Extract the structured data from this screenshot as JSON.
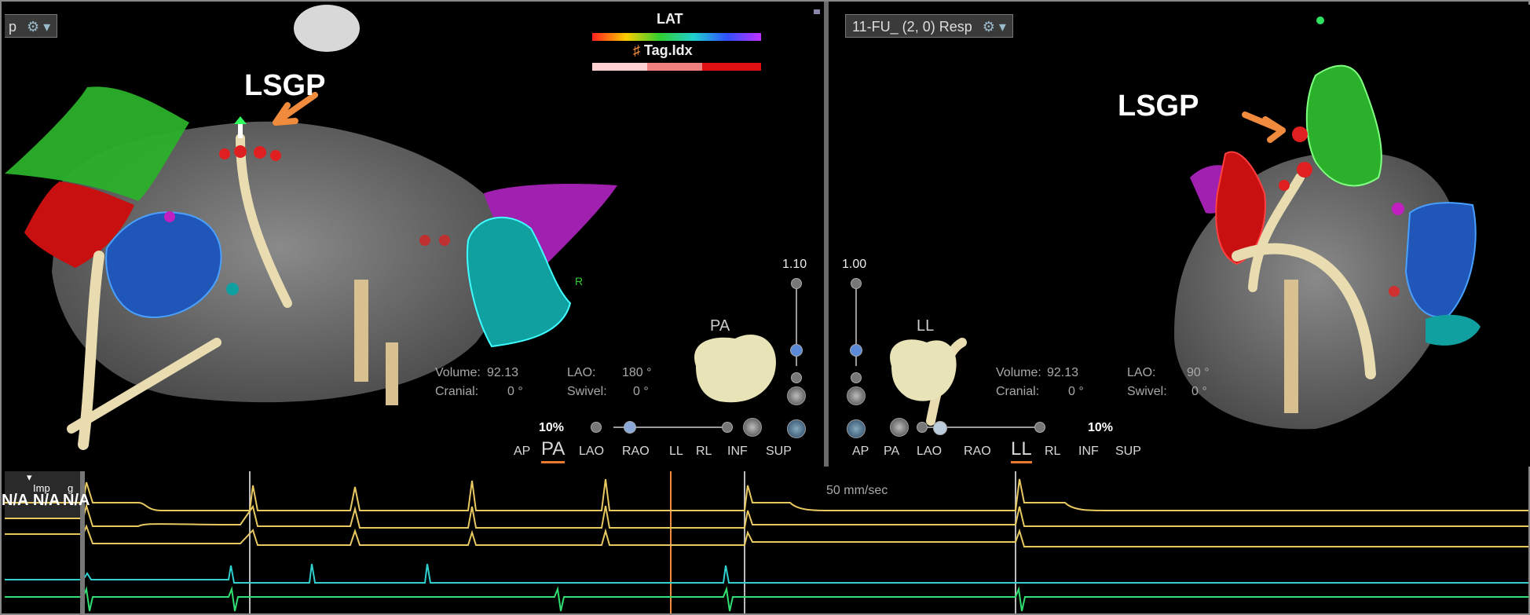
{
  "left_view": {
    "dropdown_label": "p",
    "annotation": "LSGP",
    "legend": {
      "lat_label": "LAT",
      "tag_label": "Tag.Idx"
    },
    "marker_r": "R",
    "orientation": "PA",
    "info": {
      "volume_label": "Volume:",
      "volume_value": "92.13",
      "lao_label": "LAO:",
      "lao_value": "180 °",
      "cranial_label": "Cranial:",
      "cranial_value": "0 °",
      "swivel_label": "Swivel:",
      "swivel_value": "0 °"
    },
    "scale_value": "1.10",
    "zoom": "10%",
    "views": [
      "AP",
      "PA",
      "LAO",
      "RAO",
      "LL",
      "RL",
      "INF",
      "SUP"
    ],
    "selected_view": "PA"
  },
  "right_view": {
    "dropdown_label": "11-FU_ (2, 0) Resp",
    "annotation": "LSGP",
    "orientation": "LL",
    "info": {
      "volume_label": "Volume:",
      "volume_value": "92.13",
      "lao_label": "LAO:",
      "lao_value": "90 °",
      "cranial_label": "Cranial:",
      "cranial_value": "0 °",
      "swivel_label": "Swivel:",
      "swivel_value": "0 °"
    },
    "scale_value": "1.00",
    "zoom": "10%",
    "views": [
      "AP",
      "PA",
      "LAO",
      "RAO",
      "LL",
      "RL",
      "INF",
      "SUP"
    ],
    "selected_view": "LL"
  },
  "ecg": {
    "speed": "50 mm/sec",
    "imp_label": "Imp",
    "g_label": "g",
    "na_values": [
      "N/A",
      "N/A",
      "N/A"
    ]
  },
  "colors": {
    "accent_orange": "#f08a3c",
    "ecg_yellow": "#e8c860",
    "ecg_cyan": "#2fd0d0",
    "ecg_green": "#30e070"
  }
}
